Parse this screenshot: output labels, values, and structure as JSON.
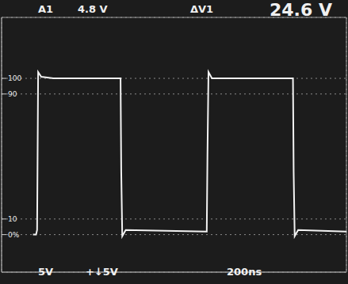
{
  "chart_data": {
    "type": "line",
    "annotations": [
      "A1",
      "4.8 V",
      "ΔV1",
      "24.6 V",
      "5V",
      "+↓5V",
      "200ns"
    ],
    "x": [
      182,
      200,
      206,
      212,
      230,
      300,
      690,
      694,
      700,
      720,
      1190,
      1194,
      1200,
      1220,
      1300,
      1690,
      1694,
      1700,
      1720,
      2000
    ],
    "values": [
      0,
      0,
      3,
      104,
      101,
      100,
      100,
      40,
      -1,
      3,
      2,
      50,
      104,
      100,
      100,
      100,
      40,
      -1,
      3,
      2
    ],
    "color": "#f2f2f2",
    "line_style": "solid",
    "xlim": [
      0,
      2000
    ],
    "xticks": [
      0,
      200,
      400,
      600,
      800,
      1000,
      1200,
      1400,
      1600,
      1800,
      2000
    ],
    "ylim": [
      -24,
      139
    ],
    "yticks": [
      {
        "value": 0,
        "label": "0%"
      },
      10,
      90,
      100
    ],
    "grid": true,
    "tick_labels": "y"
  }
}
